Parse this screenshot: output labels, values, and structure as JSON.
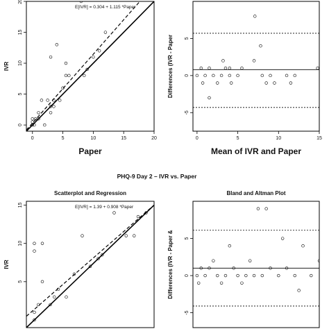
{
  "section_title": "PHQ-9 Day 2 – IVR vs. Paper",
  "chart_data": [
    {
      "id": "top_left",
      "type": "scatter",
      "title": "",
      "xlabel": "Paper",
      "ylabel": "IVR",
      "xlim": [
        -1,
        20
      ],
      "ylim": [
        -1,
        20
      ],
      "xticks": [
        0,
        5,
        10,
        15,
        20
      ],
      "yticks": [
        0,
        5,
        10,
        15,
        20
      ],
      "equation": "E[IVR] = 0.304 + 1.115 *Paper",
      "fit_line": {
        "intercept": 0.304,
        "slope": 1.115
      },
      "identity_line": true,
      "points": [
        [
          0,
          0
        ],
        [
          0,
          0.5
        ],
        [
          0,
          1
        ],
        [
          0.3,
          0
        ],
        [
          0.5,
          1
        ],
        [
          1,
          1
        ],
        [
          1,
          2
        ],
        [
          1.5,
          4
        ],
        [
          2,
          0
        ],
        [
          2.5,
          4
        ],
        [
          3,
          11
        ],
        [
          3,
          2
        ],
        [
          3,
          3
        ],
        [
          3.5,
          3
        ],
        [
          3.5,
          4
        ],
        [
          4,
          13
        ],
        [
          4.5,
          4
        ],
        [
          5,
          6
        ],
        [
          5.5,
          8
        ],
        [
          5.5,
          10
        ],
        [
          6,
          8
        ],
        [
          8,
          20
        ],
        [
          8.5,
          8
        ],
        [
          9,
          9
        ],
        [
          10,
          11
        ],
        [
          11,
          12
        ],
        [
          12,
          15
        ]
      ]
    },
    {
      "id": "top_right",
      "type": "scatter",
      "title": "",
      "xlabel": "Mean of IVR and Paper",
      "ylabel": "Differences (IVR - Paper",
      "xlim": [
        -0.5,
        15
      ],
      "ylim": [
        -7.5,
        10
      ],
      "xticks": [
        0,
        5,
        10,
        15
      ],
      "yticks": [
        -5,
        0,
        5
      ],
      "mean_line": 0.8,
      "limit_lines": [
        5.7,
        -4.3
      ],
      "points": [
        [
          0,
          0
        ],
        [
          0.5,
          1
        ],
        [
          0.7,
          -1
        ],
        [
          1,
          0
        ],
        [
          1.5,
          1
        ],
        [
          1.5,
          -3
        ],
        [
          2,
          0
        ],
        [
          2.5,
          -1
        ],
        [
          3,
          0
        ],
        [
          3.2,
          2
        ],
        [
          3.5,
          1
        ],
        [
          4,
          0
        ],
        [
          4,
          1
        ],
        [
          4.2,
          -1
        ],
        [
          5,
          0
        ],
        [
          5.5,
          1
        ],
        [
          7.1,
          8
        ],
        [
          7,
          2
        ],
        [
          7.8,
          4
        ],
        [
          8,
          0
        ],
        [
          8.5,
          -1
        ],
        [
          9,
          0
        ],
        [
          9.5,
          -1
        ],
        [
          11,
          0
        ],
        [
          11.5,
          -1
        ],
        [
          12,
          0
        ],
        [
          14.8,
          1
        ]
      ]
    },
    {
      "id": "bottom_left",
      "type": "scatter",
      "title": "Scatterplot and Regression",
      "xlabel": "",
      "ylabel": "IVR",
      "xlim": [
        -1,
        15
      ],
      "ylim": [
        -1,
        15.5
      ],
      "xticks": [],
      "yticks": [
        5,
        10,
        15
      ],
      "equation": "E[IVR] = 1.39 + 0.908 *Paper",
      "fit_line": {
        "intercept": 1.39,
        "slope": 0.908
      },
      "identity_line": true,
      "points": [
        [
          0,
          0
        ],
        [
          0,
          1
        ],
        [
          0,
          9
        ],
        [
          0,
          10
        ],
        [
          0.5,
          2
        ],
        [
          1,
          10
        ],
        [
          1,
          5
        ],
        [
          2,
          2
        ],
        [
          2.5,
          3
        ],
        [
          3,
          4
        ],
        [
          4,
          3
        ],
        [
          5,
          6
        ],
        [
          6,
          11
        ],
        [
          7,
          7
        ],
        [
          8,
          8
        ],
        [
          8.5,
          8.5
        ],
        [
          10,
          14
        ],
        [
          11.5,
          11
        ],
        [
          12.5,
          11
        ],
        [
          13,
          13.5
        ],
        [
          14,
          14
        ]
      ]
    },
    {
      "id": "bottom_right",
      "type": "scatter",
      "title": "Bland and Altman Plot",
      "xlabel": "",
      "ylabel": "Differences (IVR - Paper &",
      "xlim": [
        -0.5,
        15
      ],
      "ylim": [
        -7,
        10
      ],
      "xticks": [],
      "yticks": [
        -5,
        0,
        5
      ],
      "mean_line": 1.0,
      "limit_lines": [
        6.1,
        -4.1
      ],
      "points": [
        [
          0,
          0
        ],
        [
          0.2,
          -1
        ],
        [
          0.5,
          1
        ],
        [
          1,
          0
        ],
        [
          1.5,
          1
        ],
        [
          2,
          2
        ],
        [
          2.5,
          0
        ],
        [
          3,
          -1
        ],
        [
          3.5,
          0
        ],
        [
          4,
          4
        ],
        [
          4.5,
          1
        ],
        [
          5,
          0
        ],
        [
          5.5,
          -1
        ],
        [
          6,
          0
        ],
        [
          6.5,
          2
        ],
        [
          7,
          0
        ],
        [
          7.5,
          9
        ],
        [
          8,
          0
        ],
        [
          8.5,
          9
        ],
        [
          9,
          1
        ],
        [
          10,
          0
        ],
        [
          10.5,
          5
        ],
        [
          11,
          1
        ],
        [
          12,
          0
        ],
        [
          12.5,
          -2
        ],
        [
          13,
          4
        ],
        [
          14,
          0
        ],
        [
          15,
          2
        ]
      ]
    }
  ]
}
